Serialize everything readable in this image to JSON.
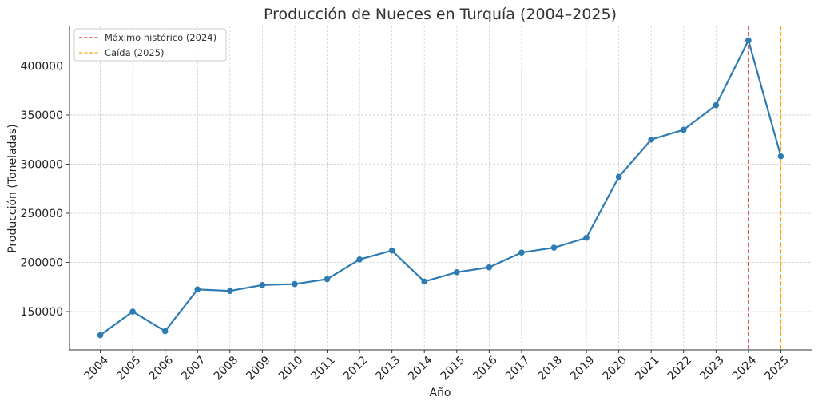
{
  "colors": {
    "series": "#2e7bb3",
    "peak_line": "#d62728",
    "drop_line": "#ffa500",
    "grid": "#cfcfcf",
    "axis": "#333333",
    "legend_border": "#cccccc"
  },
  "chart_data": {
    "type": "line",
    "title": "Producción de Nueces en Turquía (2004–2025)",
    "xlabel": "Año",
    "ylabel": "Producción (Toneladas)",
    "x": [
      2004,
      2005,
      2006,
      2007,
      2008,
      2009,
      2010,
      2011,
      2012,
      2013,
      2014,
      2015,
      2016,
      2017,
      2018,
      2019,
      2020,
      2021,
      2022,
      2023,
      2024,
      2025
    ],
    "x_tick_labels": [
      "2004",
      "2005",
      "2006",
      "2007",
      "2008",
      "2009",
      "2010",
      "2011",
      "2012",
      "2013",
      "2014",
      "2015",
      "2016",
      "2017",
      "2018",
      "2019",
      "2020",
      "2021",
      "2022",
      "2023",
      "2024",
      "2025"
    ],
    "series": [
      {
        "values": [
          126000,
          150000,
          130000,
          172500,
          171000,
          177000,
          178000,
          183000,
          203000,
          212000,
          180500,
          190000,
          195000,
          210000,
          215000,
          225000,
          287000,
          325000,
          335000,
          360000,
          426000,
          308000
        ]
      }
    ],
    "y_ticks": [
      150000,
      200000,
      250000,
      300000,
      350000,
      400000
    ],
    "y_tick_labels": [
      "150000",
      "200000",
      "250000",
      "300000",
      "350000",
      "400000"
    ],
    "xlim": [
      2003.05,
      2025.95
    ],
    "ylim": [
      111000,
      441000
    ],
    "grid": true,
    "legend_position": "top-left",
    "reference_lines": [
      {
        "x": 2024,
        "label": "Máximo histórico (2024)",
        "color": "#d62728",
        "style": "dashed"
      },
      {
        "x": 2025,
        "label": "Caída (2025)",
        "color": "#ffa500",
        "style": "dashed"
      }
    ]
  }
}
